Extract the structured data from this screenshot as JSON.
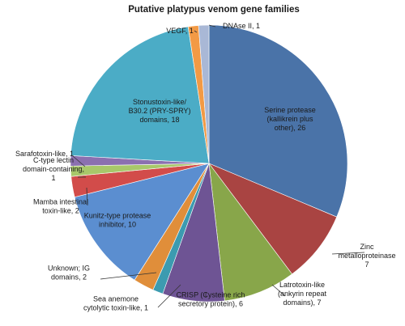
{
  "chart_data": {
    "type": "pie",
    "title": "Putative platypus venom gene families",
    "start_angle_deg": 0,
    "direction": "clockwise",
    "slices": [
      {
        "label": "Serine protease (kallikrein plus other)",
        "value": 26,
        "text": [
          "Serine protease",
          "(kallikrein plus",
          "other), 26"
        ],
        "color": "#4A73A8",
        "placement": "inside"
      },
      {
        "label": "Zinc metalloproteinase",
        "value": 7,
        "text": [
          "Zinc",
          "metalloproteinase",
          "7"
        ],
        "color": "#A94442",
        "placement": "outside"
      },
      {
        "label": "Latrotoxin-like (ankyrin repeat domains)",
        "value": 7,
        "text": [
          "Latrotoxin-like",
          "(ankyrin repeat",
          "domains), 7"
        ],
        "color": "#88A64A",
        "placement": "outside"
      },
      {
        "label": "CRISP (Cysteine rich secretory protein)",
        "value": 6,
        "text": [
          "CRISP (Cysteine rich",
          "secretory protein), 6"
        ],
        "color": "#6E5494",
        "placement": "outside"
      },
      {
        "label": "Sea anemone cytolytic toxin-like",
        "value": 1,
        "text": [
          "Sea anemone",
          "cytolytic toxin-like, 1"
        ],
        "color": "#3C9BB0",
        "placement": "outside"
      },
      {
        "label": "Unknown; IG domains",
        "value": 2,
        "text": [
          "Unknown; IG",
          "domains, 2"
        ],
        "color": "#E08E3A",
        "placement": "outside"
      },
      {
        "label": "Kunitz-type protease inhibitor",
        "value": 10,
        "text": [
          "Kunitz-type protease",
          "inhibitor, 10"
        ],
        "color": "#5B8ED0",
        "placement": "inside"
      },
      {
        "label": "Mamba intestinal toxin-like",
        "value": 2,
        "text": [
          "Mamba intestinal",
          "toxin-like, 2"
        ],
        "color": "#D24C4A",
        "placement": "outside"
      },
      {
        "label": "C-type lectin domain-containing",
        "value": 1,
        "text": [
          "C-type lectin",
          "domain-containing,",
          "1"
        ],
        "color": "#A8C86A",
        "placement": "outside"
      },
      {
        "label": "Sarafotoxin-like",
        "value": 1,
        "text": [
          "Sarafotoxin-like, 1"
        ],
        "color": "#8B70B0",
        "placement": "outside"
      },
      {
        "label": "Stonustoxin-like/ B30.2 (PRY-SPRY) domains",
        "value": 18,
        "text": [
          "Stonustoxin-like/",
          "B30.2 (PRY-SPRY)",
          "domains, 18"
        ],
        "color": "#4BACC6",
        "placement": "inside"
      },
      {
        "label": "VEGF",
        "value": 1,
        "text": [
          "VEGF, 1"
        ],
        "color": "#F29A45",
        "placement": "outside"
      },
      {
        "label": "DNAse II",
        "value": 1,
        "text": [
          "DNAse II, 1"
        ],
        "color": "#A9B8D6",
        "placement": "outside"
      }
    ]
  }
}
